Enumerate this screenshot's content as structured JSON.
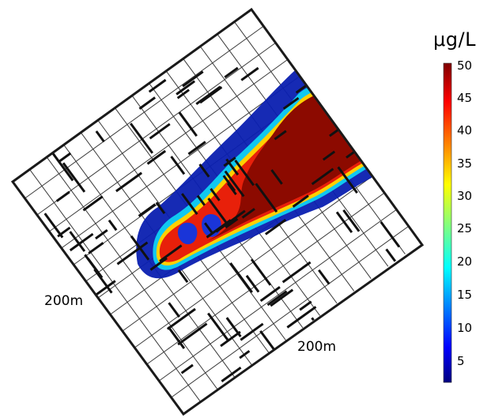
{
  "figure": {
    "dimension_left": "200m",
    "dimension_bottom": "200m"
  },
  "colorbar": {
    "unit": "μg/L",
    "ticks": [
      "50",
      "45",
      "40",
      "35",
      "30",
      "25",
      "20",
      "15",
      "10",
      "5"
    ],
    "tick_values": [
      50,
      45,
      40,
      35,
      30,
      25,
      20,
      15,
      10,
      5
    ],
    "min": 1,
    "max": 50,
    "colormap": "jet",
    "colors": [
      "#00007f",
      "#0000ff",
      "#00ffff",
      "#ffff00",
      "#ff0000",
      "#7f0000"
    ]
  }
}
